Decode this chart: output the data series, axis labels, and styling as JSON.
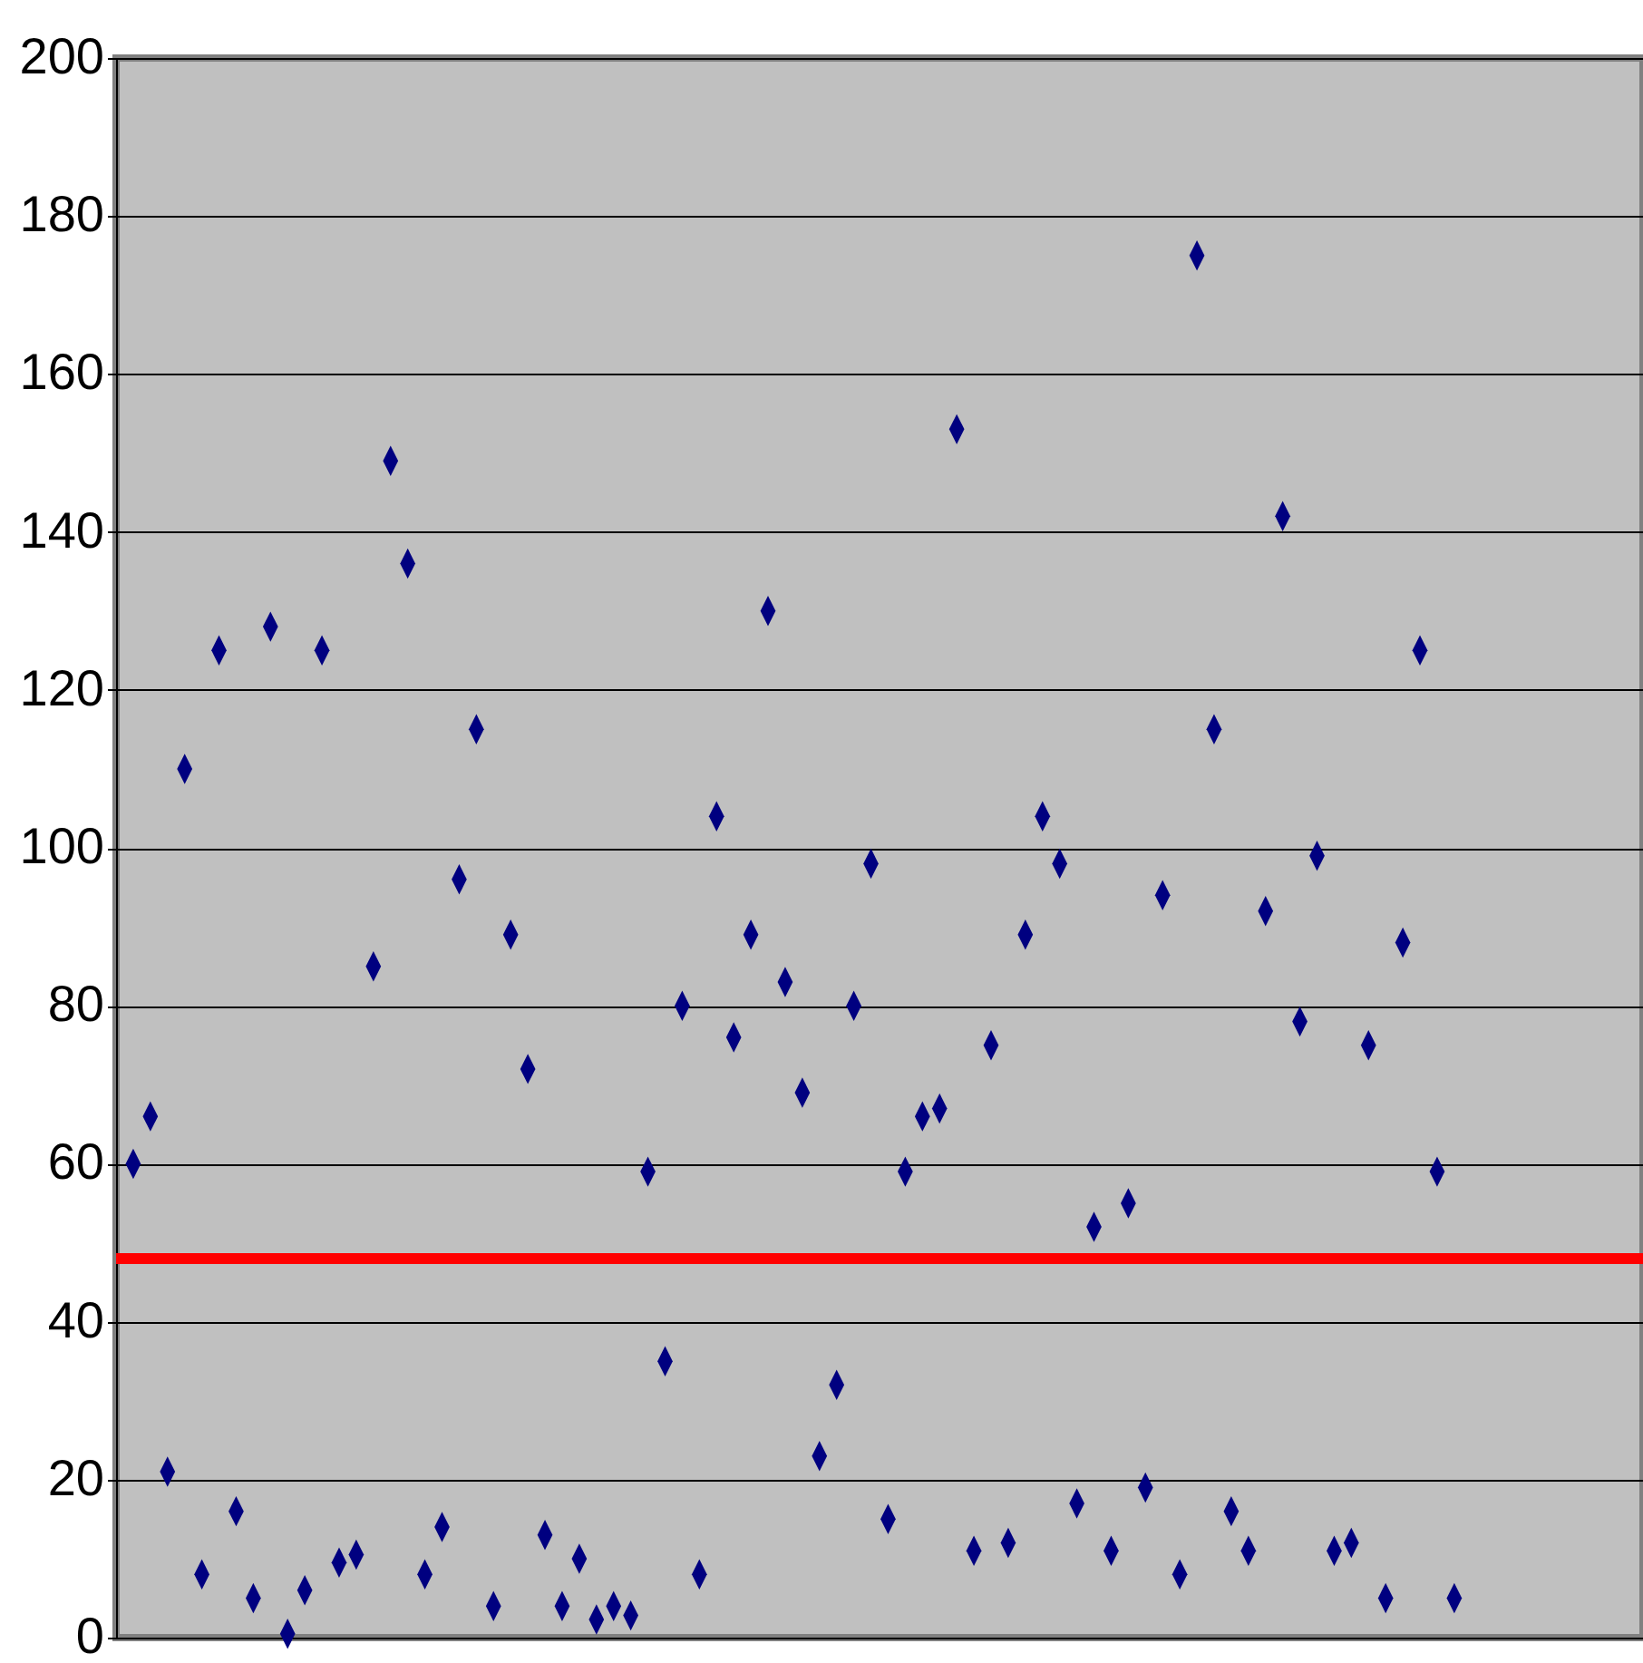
{
  "chart_data": {
    "type": "scatter",
    "categories": [
      null,
      null,
      null,
      null,
      null,
      null,
      null,
      null,
      null,
      null,
      null,
      null,
      null,
      null,
      null,
      null,
      null,
      null,
      null,
      null,
      null,
      null,
      null,
      null,
      null,
      null,
      null,
      null,
      null,
      null,
      null,
      null,
      null,
      null,
      null,
      null,
      null,
      null,
      null,
      null,
      null,
      null,
      null,
      null,
      null,
      null,
      null,
      null,
      null,
      null,
      null,
      null,
      null,
      null,
      null,
      null,
      null,
      null,
      null,
      null,
      null,
      null,
      null,
      null,
      null,
      null,
      null,
      null,
      null,
      null,
      null,
      null,
      null,
      null,
      null,
      null,
      null,
      null,
      null,
      null,
      null,
      null,
      null,
      null,
      null,
      null,
      null,
      null
    ],
    "series": [
      {
        "color": "#000080",
        "values": [
          60,
          66,
          21,
          110,
          8,
          125,
          16,
          5,
          128,
          0.5,
          6,
          125,
          9.5,
          10.5,
          85,
          149,
          136,
          8,
          14,
          96,
          115,
          4,
          89,
          72,
          13,
          4,
          10,
          2.3,
          4,
          2.8,
          59,
          35,
          80,
          8,
          104,
          76,
          89,
          130,
          83,
          69,
          23,
          32,
          80,
          98,
          15,
          59,
          66,
          67,
          153,
          11,
          75,
          12,
          89,
          104,
          98,
          17,
          52,
          11,
          55,
          19,
          94,
          8,
          175,
          115,
          16,
          11,
          92,
          142,
          78,
          99,
          11,
          12,
          75,
          5,
          88,
          125,
          59,
          5,
          null,
          null,
          null,
          null,
          null,
          null,
          null,
          null,
          null,
          null
        ]
      }
    ],
    "ylim": [
      0,
      200
    ],
    "yticks": [
      0,
      20,
      40,
      60,
      80,
      100,
      120,
      140,
      160,
      180,
      200
    ],
    "grid": "y",
    "marker": "diamond",
    "tick_labels": "y",
    "ref_lines": [
      {
        "axis": "y",
        "value": 48,
        "color": "#ff0000",
        "line_style": "solid"
      }
    ]
  }
}
